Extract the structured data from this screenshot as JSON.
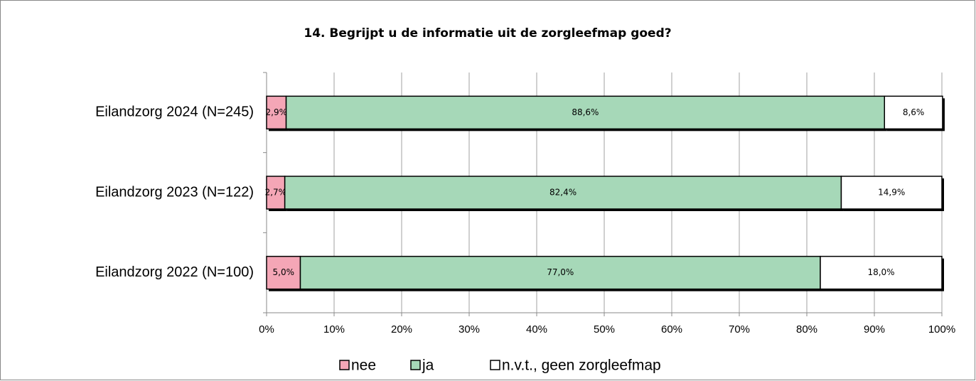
{
  "chart_data": {
    "type": "stacked-barh",
    "title": "14. Begrijpt u de informatie uit de zorgleefmap goed?",
    "categories": [
      "Eilandzorg 2024 (N=245)",
      "Eilandzorg 2023 (N=122)",
      "Eilandzorg 2022 (N=100)"
    ],
    "series": [
      {
        "name": "nee",
        "color": "#f4a6b6",
        "values": [
          2.9,
          2.7,
          5.0
        ],
        "value_labels": [
          "2,9%",
          "2,7%",
          "5,0%"
        ]
      },
      {
        "name": "ja",
        "color": "#a6d8b8",
        "values": [
          88.6,
          82.4,
          77.0
        ],
        "value_labels": [
          "88,6%",
          "82,4%",
          "77,0%"
        ]
      },
      {
        "name": "n.v.t., geen zorgleefmap",
        "color": "#ffffff",
        "values": [
          8.6,
          14.9,
          18.0
        ],
        "value_labels": [
          "8,6%",
          "14,9%",
          "18,0%"
        ]
      }
    ],
    "xlim": [
      0,
      100
    ],
    "xticks": [
      {
        "value": 0,
        "label": "0%"
      },
      {
        "value": 10,
        "label": "10%"
      },
      {
        "value": 20,
        "label": "20%"
      },
      {
        "value": 30,
        "label": "30%"
      },
      {
        "value": 40,
        "label": "40%"
      },
      {
        "value": 50,
        "label": "50%"
      },
      {
        "value": 60,
        "label": "60%"
      },
      {
        "value": 70,
        "label": "70%"
      },
      {
        "value": 80,
        "label": "80%"
      },
      {
        "value": 90,
        "label": "90%"
      },
      {
        "value": 100,
        "label": "100%"
      }
    ],
    "grid": true
  }
}
